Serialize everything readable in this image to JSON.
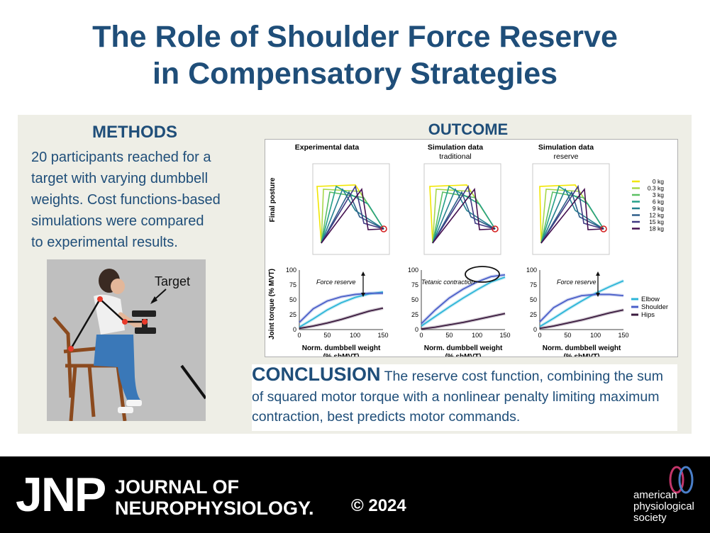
{
  "title": {
    "line1": "The Role of Shoulder Force Reserve",
    "line2": "in Compensatory Strategies"
  },
  "methods": {
    "heading": "METHODS",
    "lines": [
      "20 participants reached for a",
      "target with varying dumbbell",
      "weights. Cost functions-based",
      "simulations were compared",
      "to experimental results."
    ],
    "figure_label": "Target"
  },
  "outcome": {
    "heading": "OUTCOME",
    "columns": [
      {
        "title": "Experimental data",
        "subtitle": "",
        "annotation": "Force reserve"
      },
      {
        "title": "Simulation data",
        "subtitle": "traditional",
        "annotation": "Tetanic contraction"
      },
      {
        "title": "Simulation data",
        "subtitle": "reserve",
        "annotation": "Force reserve"
      }
    ],
    "posture_ylabel": "Final posture",
    "torque_ylabel": "Joint torque (% MVT)",
    "xlabel_line1": "Norm. dumbbell weight",
    "xlabel_line2": "(% shMVT)",
    "weight_legend": [
      "0 kg",
      "0.3 kg",
      "3 kg",
      "6 kg",
      "9 kg",
      "12 kg",
      "15 kg",
      "18 kg"
    ],
    "weight_colors": [
      "#f2e600",
      "#a8d84a",
      "#5cc064",
      "#26a089",
      "#23808e",
      "#2f5f8a",
      "#3f3882",
      "#44104f"
    ],
    "joint_legend": [
      "Elbow",
      "Shoulder",
      "Hips"
    ],
    "joint_colors": [
      "#2cb5d8",
      "#4a5fc9",
      "#3a1a3e"
    ]
  },
  "chart_data": {
    "type": "line",
    "xlabel": "Norm. dumbbell weight (% shMVT)",
    "ylabel": "Joint torque (% MVT)",
    "xlim": [
      0,
      150
    ],
    "ylim": [
      0,
      100
    ],
    "xticks": [
      0,
      50,
      100,
      150
    ],
    "yticks": [
      0,
      25,
      50,
      75,
      100
    ],
    "panels": [
      {
        "title": "Experimental data",
        "series": [
          {
            "name": "Elbow",
            "x": [
              0,
              25,
              50,
              75,
              100,
              125,
              150
            ],
            "y": [
              4,
              18,
              33,
              45,
              54,
              60,
              63
            ]
          },
          {
            "name": "Shoulder",
            "x": [
              0,
              25,
              50,
              75,
              100,
              125,
              150
            ],
            "y": [
              12,
              35,
              48,
              55,
              59,
              61,
              61
            ]
          },
          {
            "name": "Hips",
            "x": [
              0,
              25,
              50,
              75,
              100,
              125,
              150
            ],
            "y": [
              2,
              6,
              11,
              17,
              24,
              31,
              36
            ]
          }
        ]
      },
      {
        "title": "Simulation data traditional",
        "series": [
          {
            "name": "Elbow",
            "x": [
              0,
              25,
              50,
              75,
              100,
              125,
              150
            ],
            "y": [
              6,
              22,
              38,
              53,
              67,
              80,
              88
            ]
          },
          {
            "name": "Shoulder",
            "x": [
              0,
              25,
              50,
              75,
              100,
              125,
              150
            ],
            "y": [
              10,
              33,
              53,
              68,
              80,
              89,
              92
            ]
          },
          {
            "name": "Hips",
            "x": [
              0,
              25,
              50,
              75,
              100,
              125,
              150
            ],
            "y": [
              1,
              4,
              8,
              12,
              17,
              22,
              27
            ]
          }
        ]
      },
      {
        "title": "Simulation data reserve",
        "series": [
          {
            "name": "Elbow",
            "x": [
              0,
              25,
              50,
              75,
              100,
              125,
              150
            ],
            "y": [
              5,
              19,
              34,
              48,
              61,
              72,
              82
            ]
          },
          {
            "name": "Shoulder",
            "x": [
              0,
              25,
              50,
              75,
              100,
              125,
              150
            ],
            "y": [
              13,
              37,
              50,
              57,
              59,
              59,
              57
            ]
          },
          {
            "name": "Hips",
            "x": [
              0,
              25,
              50,
              75,
              100,
              125,
              150
            ],
            "y": [
              2,
              6,
              11,
              16,
              22,
              28,
              33
            ]
          }
        ]
      }
    ]
  },
  "conclusion": {
    "heading": "CONCLUSION",
    "text": "The reserve cost function, combining the sum of squared motor torque with a nonlinear penalty limiting maximum contraction, best predicts motor commands."
  },
  "footer": {
    "logo": "JNP",
    "journal_line1": "JOURNAL OF",
    "journal_line2": "NEUROPHYSIOLOGY.",
    "copyright": "© 2024",
    "society_lines": [
      "american",
      "physiological",
      "society"
    ]
  }
}
